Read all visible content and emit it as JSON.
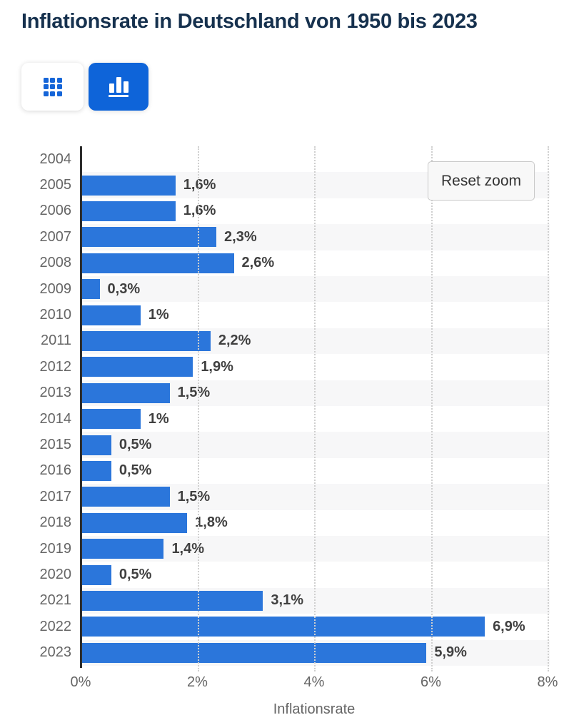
{
  "title": "Inflationsrate in Deutschland von 1950 bis 2023",
  "toolbar": {
    "buttons": [
      {
        "name": "table-view",
        "icon": "grid-icon",
        "active": false
      },
      {
        "name": "chart-view",
        "icon": "bar-chart-icon",
        "active": true
      }
    ]
  },
  "reset_zoom_label": "Reset zoom",
  "colors": {
    "bar": "#2b76db",
    "accent_button": "#0e64d9",
    "title_text": "#16314e",
    "row_band": "#f7f7f8",
    "gridline": "#cfcfcf",
    "axis_text": "#666666",
    "data_label_text": "#404040"
  },
  "chart_data": {
    "type": "bar",
    "orientation": "horizontal",
    "title": "Inflationsrate in Deutschland von 1950 bis 2023",
    "xlabel": "Inflationsrate",
    "xlim": [
      0,
      8
    ],
    "grid": "dotted-vertical",
    "x_tick_values": [
      0,
      2,
      4,
      6,
      8
    ],
    "x_tick_labels": [
      "0%",
      "2%",
      "4%",
      "6%",
      "8%"
    ],
    "categories": [
      "2004",
      "2005",
      "2006",
      "2007",
      "2008",
      "2009",
      "2010",
      "2011",
      "2012",
      "2013",
      "2014",
      "2015",
      "2016",
      "2017",
      "2018",
      "2019",
      "2020",
      "2021",
      "2022",
      "2023"
    ],
    "values": [
      null,
      1.6,
      1.6,
      2.3,
      2.6,
      0.3,
      1,
      2.2,
      1.9,
      1.5,
      1,
      0.5,
      0.5,
      1.5,
      1.8,
      1.4,
      0.5,
      3.1,
      6.9,
      5.9
    ],
    "data_labels": [
      "",
      "1,6%",
      "1,6%",
      "2,3%",
      "2,6%",
      "0,3%",
      "1%",
      "2,2%",
      "1,9%",
      "1,5%",
      "1%",
      "0,5%",
      "0,5%",
      "1,5%",
      "1,8%",
      "1,4%",
      "0,5%",
      "3,1%",
      "6,9%",
      "5,9%"
    ],
    "zoom_state": "zoomed"
  }
}
